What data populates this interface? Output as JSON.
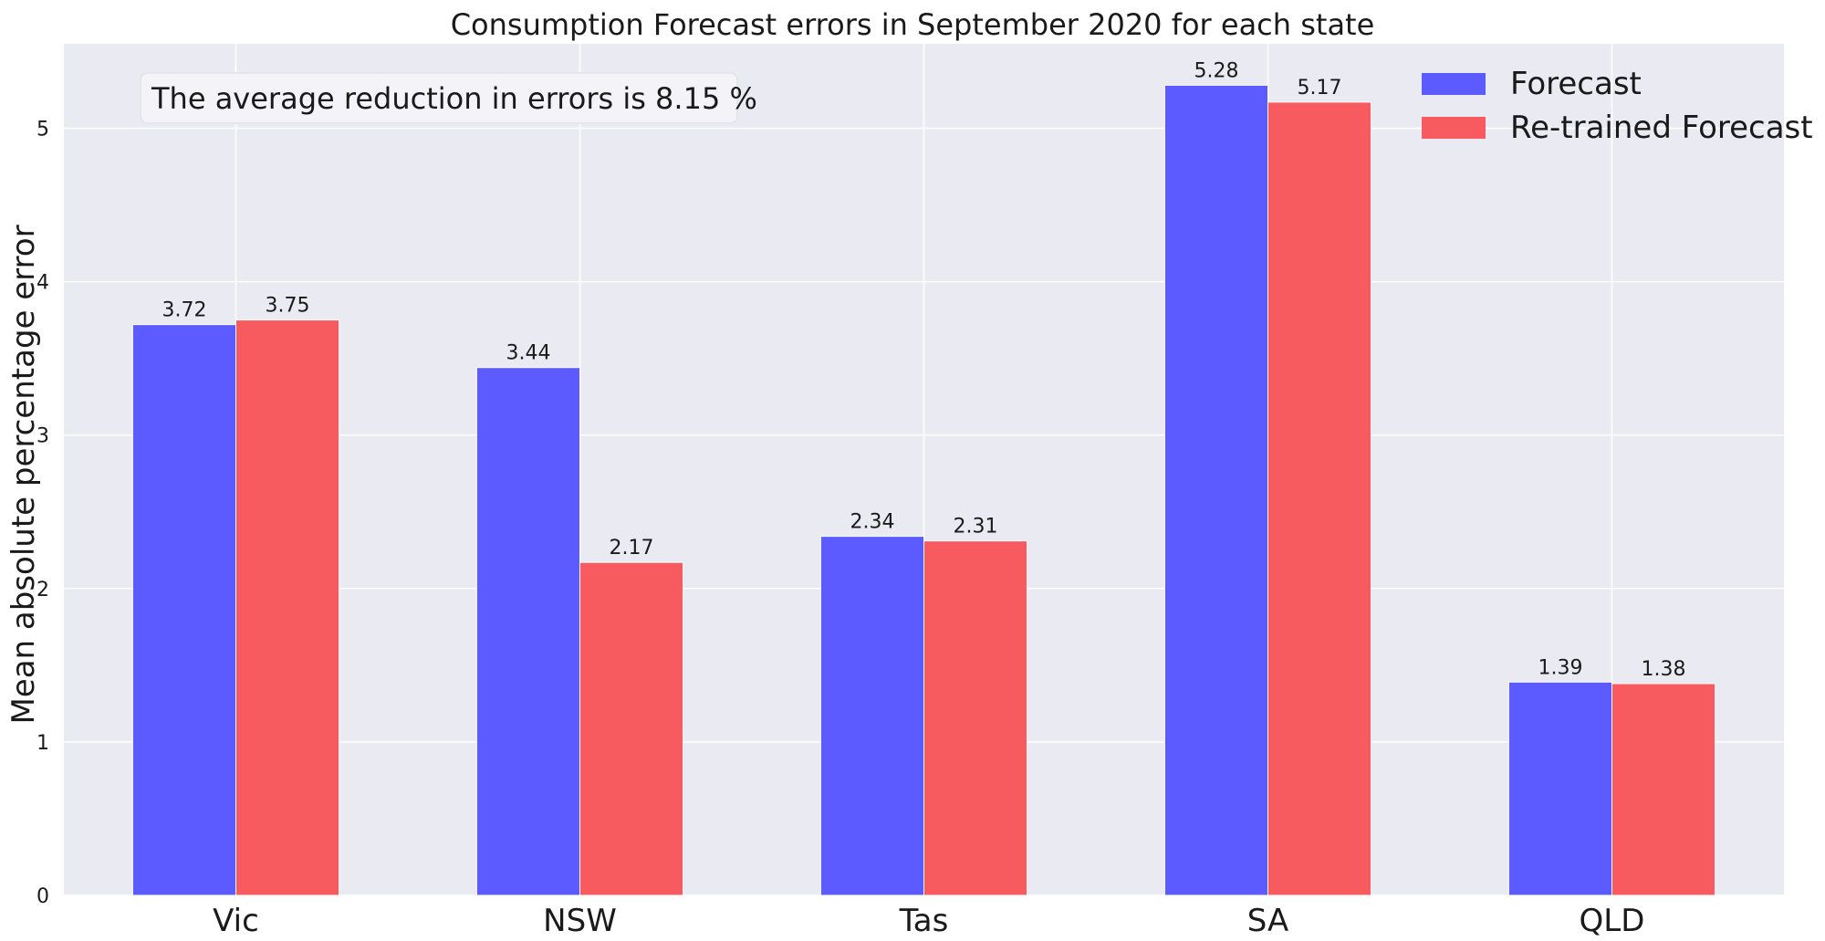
{
  "chart_data": {
    "type": "bar",
    "title": "Consumption Forecast errors in September 2020 for each state",
    "xlabel": "",
    "ylabel": "Mean absolute percentage error",
    "categories": [
      "Vic",
      "NSW",
      "Tas",
      "SA",
      "QLD"
    ],
    "series": [
      {
        "name": "Forecast",
        "color": "#5b5bff",
        "values": [
          3.72,
          3.44,
          2.34,
          5.28,
          1.39
        ]
      },
      {
        "name": "Re-trained Forecast",
        "color": "#f75a5f",
        "values": [
          3.75,
          2.17,
          2.31,
          5.17,
          1.38
        ]
      }
    ],
    "value_labels": [
      [
        "3.72",
        "3.44",
        "2.34",
        "5.28",
        "1.39"
      ],
      [
        "3.75",
        "2.17",
        "2.31",
        "5.17",
        "1.38"
      ]
    ],
    "yticks": [
      "0",
      "1",
      "2",
      "3",
      "4",
      "5"
    ],
    "ylim": [
      0,
      5.55
    ],
    "grid": true,
    "legend_position": "top-right",
    "annotation": "The average reduction in errors is 8.15 %",
    "background_color": "#eaeaf2",
    "grid_color": "#ffffff"
  }
}
